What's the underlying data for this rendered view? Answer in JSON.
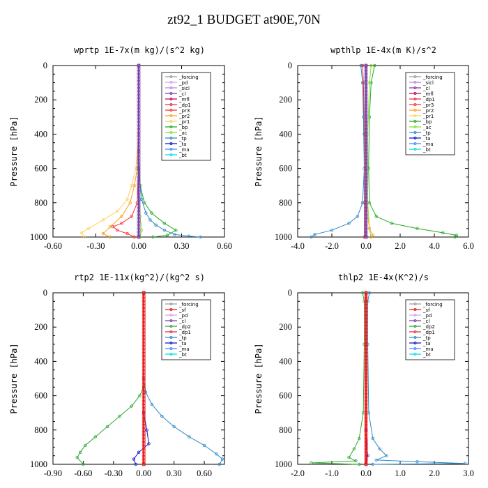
{
  "title": "zt92_1  BUDGET at90E,70N",
  "colors": {
    "_forcing": "#9b9b9b",
    "_pd": "#d7a0e8",
    "_sicl": "#b58bd8",
    "_cl": "#7b3ea8",
    "_mfl": "#c0005a",
    "_dp1": "#e0303a",
    "_dp2": "#2fa82f",
    "_pr3": "#ff3030",
    "_pr2": "#ffa020",
    "_pr1": "#ffd060",
    "_bp": "#22aa22",
    "_ac": "#88dd33",
    "_tp": "#2b89c6",
    "_ta": "#1010cc",
    "_ma": "#4488ff",
    "_bt": "#00e0e0",
    "_sf": "#ee1111"
  },
  "chart_data": [
    {
      "type": "line",
      "title": "wprtp   1E-7x(m kg)/(s^2 kg)",
      "ylabel": "Pressure [hPa]",
      "xlim": [
        -0.6,
        0.6
      ],
      "ylim": [
        1000,
        0
      ],
      "y_reversed": true,
      "xticks": [
        "-0.60",
        "-0.30",
        "0.00",
        "0.30",
        "0.60"
      ],
      "yticks": [
        "0",
        "200",
        "400",
        "600",
        "800",
        "1000"
      ],
      "legend": [
        "_forcing",
        "_pd",
        "_sicl",
        "_cl",
        "_mfl",
        "_dp1",
        "_pr3",
        "_pr2",
        "_pr1",
        "_bp",
        "_ac",
        "_tp",
        "_ta",
        "_ma",
        "_bt"
      ],
      "legend_position": "top-right",
      "series": [
        {
          "name": "_pr1",
          "points": [
            [
              0,
              0
            ],
            [
              0,
              400
            ],
            [
              -0.02,
              600
            ],
            [
              -0.05,
              700
            ],
            [
              -0.08,
              780
            ],
            [
              -0.15,
              850
            ],
            [
              -0.25,
              900
            ],
            [
              -0.35,
              950
            ],
            [
              -0.4,
              975
            ],
            [
              -0.38,
              1000
            ]
          ]
        },
        {
          "name": "_pr2",
          "points": [
            [
              0,
              0
            ],
            [
              0,
              400
            ],
            [
              -0.01,
              600
            ],
            [
              -0.03,
              700
            ],
            [
              -0.06,
              800
            ],
            [
              -0.12,
              880
            ],
            [
              -0.2,
              940
            ],
            [
              -0.25,
              980
            ],
            [
              -0.2,
              1000
            ]
          ]
        },
        {
          "name": "_pr3",
          "points": [
            [
              0,
              0
            ],
            [
              0,
              600
            ],
            [
              -0.01,
              800
            ],
            [
              -0.05,
              880
            ],
            [
              -0.12,
              920
            ],
            [
              -0.18,
              940
            ],
            [
              -0.15,
              960
            ],
            [
              -0.08,
              980
            ],
            [
              -0.03,
              1000
            ]
          ]
        },
        {
          "name": "_bp",
          "points": [
            [
              0,
              0
            ],
            [
              0,
              500
            ],
            [
              0.01,
              700
            ],
            [
              0.04,
              800
            ],
            [
              0.09,
              860
            ],
            [
              0.18,
              920
            ],
            [
              0.26,
              960
            ],
            [
              0.2,
              990
            ],
            [
              0.1,
              1000
            ]
          ]
        },
        {
          "name": "_tp",
          "points": [
            [
              0,
              0
            ],
            [
              0,
              600
            ],
            [
              0.02,
              780
            ],
            [
              0.05,
              860
            ],
            [
              0.08,
              900
            ],
            [
              0.12,
              930
            ],
            [
              0.18,
              960
            ],
            [
              0.25,
              985
            ],
            [
              0.35,
              995
            ],
            [
              0.43,
              1000
            ]
          ]
        },
        {
          "name": "_ac",
          "points": [
            [
              0,
              0
            ],
            [
              0,
              700
            ],
            [
              0.01,
              880
            ],
            [
              0.02,
              960
            ],
            [
              0.01,
              1000
            ]
          ]
        },
        {
          "name": "_forcing",
          "points": [
            [
              0,
              0
            ],
            [
              0,
              1000
            ]
          ]
        },
        {
          "name": "_cl",
          "points": [
            [
              0,
              0
            ],
            [
              0,
              1000
            ]
          ]
        }
      ]
    },
    {
      "type": "line",
      "title": "wpthlp   1E-4x(m K)/s^2",
      "ylabel": "Pressure [hPa]",
      "xlim": [
        -4,
        6
      ],
      "ylim": [
        1000,
        0
      ],
      "y_reversed": true,
      "xticks": [
        "-4.0",
        "-2.0",
        "0.0",
        "2.0",
        "4.0",
        "6.0"
      ],
      "yticks": [
        "0",
        "200",
        "400",
        "600",
        "800",
        "1000"
      ],
      "legend": [
        "_forcing",
        "_sicl",
        "_cl",
        "_mfl",
        "_dp1",
        "_pr3",
        "_pr2",
        "_pr1",
        "_bp",
        "_ac",
        "_tp",
        "_ta",
        "_ma",
        "_bt"
      ],
      "legend_position": "top-right",
      "series": [
        {
          "name": "_bp",
          "points": [
            [
              0.5,
              0
            ],
            [
              0.3,
              100
            ],
            [
              0.2,
              300
            ],
            [
              0.15,
              600
            ],
            [
              0.2,
              800
            ],
            [
              0.6,
              880
            ],
            [
              1.5,
              920
            ],
            [
              3,
              950
            ],
            [
              4.5,
              975
            ],
            [
              5.3,
              990
            ],
            [
              5.2,
              1000
            ]
          ]
        },
        {
          "name": "_tp",
          "points": [
            [
              -0.3,
              0
            ],
            [
              -0.2,
              100
            ],
            [
              -0.15,
              300
            ],
            [
              -0.1,
              600
            ],
            [
              -0.2,
              800
            ],
            [
              -0.5,
              880
            ],
            [
              -1,
              920
            ],
            [
              -2,
              960
            ],
            [
              -3,
              985
            ],
            [
              -3.2,
              1000
            ]
          ]
        },
        {
          "name": "_dp1",
          "points": [
            [
              -0.2,
              0
            ],
            [
              -0.15,
              100
            ],
            [
              -0.1,
              400
            ],
            [
              -0.1,
              800
            ],
            [
              -0.1,
              1000
            ]
          ]
        },
        {
          "name": "_ac",
          "points": [
            [
              0.3,
              0
            ],
            [
              0.2,
              100
            ],
            [
              0.1,
              400
            ],
            [
              0.1,
              800
            ],
            [
              0.2,
              950
            ],
            [
              0.3,
              1000
            ]
          ]
        },
        {
          "name": "_pr2",
          "points": [
            [
              0,
              0
            ],
            [
              0,
              800
            ],
            [
              0.2,
              950
            ],
            [
              0.4,
              990
            ],
            [
              0.3,
              1000
            ]
          ]
        },
        {
          "name": "_forcing",
          "points": [
            [
              0,
              0
            ],
            [
              0,
              1000
            ]
          ]
        },
        {
          "name": "_cl",
          "points": [
            [
              0,
              0
            ],
            [
              0,
              1000
            ]
          ]
        }
      ]
    },
    {
      "type": "line",
      "title": "rtp2   1E-11x(kg^2)/(kg^2 s)",
      "ylabel": "Pressure [hPa]",
      "xlim": [
        -0.9,
        0.8
      ],
      "ylim": [
        1000,
        0
      ],
      "y_reversed": true,
      "xticks": [
        "-0.90",
        "-0.60",
        "-0.30",
        "0.00",
        "0.30",
        "0.60"
      ],
      "yticks": [
        "0",
        "200",
        "400",
        "600",
        "800",
        "1000"
      ],
      "legend": [
        "_forcing",
        "_sf",
        "_pd",
        "_cl",
        "_dp2",
        "_dp1",
        "_tp",
        "_ta",
        "_ma",
        "_bt"
      ],
      "legend_position": "top-right",
      "series": [
        {
          "name": "_tp",
          "points": [
            [
              0,
              0
            ],
            [
              0,
              500
            ],
            [
              0.02,
              580
            ],
            [
              0.08,
              650
            ],
            [
              0.18,
              720
            ],
            [
              0.3,
              780
            ],
            [
              0.45,
              840
            ],
            [
              0.6,
              890
            ],
            [
              0.72,
              940
            ],
            [
              0.78,
              970
            ],
            [
              0.75,
              1000
            ]
          ]
        },
        {
          "name": "_dp2",
          "points": [
            [
              0,
              0
            ],
            [
              0,
              550
            ],
            [
              -0.04,
              600
            ],
            [
              -0.12,
              660
            ],
            [
              -0.24,
              720
            ],
            [
              -0.36,
              780
            ],
            [
              -0.48,
              840
            ],
            [
              -0.58,
              890
            ],
            [
              -0.63,
              930
            ],
            [
              -0.66,
              960
            ],
            [
              -0.6,
              1000
            ]
          ]
        },
        {
          "name": "_ta",
          "points": [
            [
              0,
              0
            ],
            [
              0,
              700
            ],
            [
              0.03,
              800
            ],
            [
              0.05,
              880
            ],
            [
              -0.05,
              930
            ],
            [
              -0.1,
              970
            ],
            [
              -0.08,
              1000
            ]
          ]
        },
        {
          "name": "_forcing",
          "points": [
            [
              0,
              0
            ],
            [
              0,
              1000
            ]
          ]
        },
        {
          "name": "_sf",
          "points": [
            [
              0,
              0
            ],
            [
              0,
              1000
            ]
          ]
        }
      ]
    },
    {
      "type": "line",
      "title": "thlp2   1E-4x(K^2)/s",
      "ylabel": "Pressure [hPa]",
      "xlim": [
        -2,
        3
      ],
      "ylim": [
        1000,
        0
      ],
      "y_reversed": true,
      "xticks": [
        "-2.0",
        "-1.0",
        "0.0",
        "1.0",
        "2.0",
        "3.0"
      ],
      "yticks": [
        "0",
        "200",
        "400",
        "600",
        "800",
        "1000"
      ],
      "legend": [
        "_forcing",
        "_sf",
        "_pd",
        "_cl",
        "_dp2",
        "_dp1",
        "_tp",
        "_ta",
        "_ma",
        "_bt"
      ],
      "legend_position": "top-right",
      "series": [
        {
          "name": "_tp",
          "points": [
            [
              0.1,
              0
            ],
            [
              0.05,
              50
            ],
            [
              0.05,
              300
            ],
            [
              0.08,
              700
            ],
            [
              0.2,
              850
            ],
            [
              0.4,
              910
            ],
            [
              0.6,
              950
            ],
            [
              0.3,
              975
            ],
            [
              1.5,
              985
            ],
            [
              2.9,
              995
            ],
            [
              0.2,
              1000
            ]
          ]
        },
        {
          "name": "_dp2",
          "points": [
            [
              -0.1,
              0
            ],
            [
              -0.05,
              50
            ],
            [
              -0.05,
              300
            ],
            [
              -0.08,
              700
            ],
            [
              -0.2,
              850
            ],
            [
              -0.35,
              910
            ],
            [
              -0.5,
              960
            ],
            [
              -0.3,
              980
            ],
            [
              -1.6,
              992
            ],
            [
              -0.2,
              1000
            ]
          ]
        },
        {
          "name": "_ta",
          "points": [
            [
              0,
              0
            ],
            [
              0,
              800
            ],
            [
              0.05,
              950
            ],
            [
              0,
              1000
            ]
          ]
        },
        {
          "name": "_forcing",
          "points": [
            [
              0,
              0
            ],
            [
              0,
              1000
            ]
          ]
        },
        {
          "name": "_sf",
          "points": [
            [
              0,
              0
            ],
            [
              0,
              1000
            ]
          ]
        }
      ]
    }
  ]
}
